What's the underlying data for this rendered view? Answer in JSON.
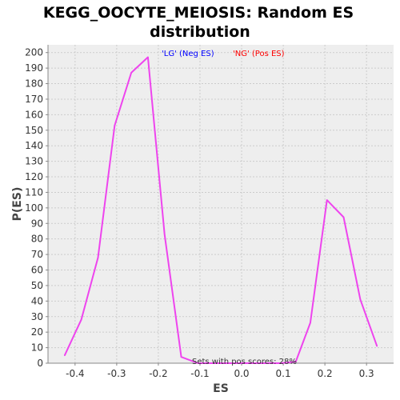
{
  "chart_data": {
    "type": "line",
    "title_line1": "KEGG_OOCYTE_MEIOSIS: Random ES",
    "title_line2": "distribution",
    "xlabel": "ES",
    "ylabel": "P(ES)",
    "xlim": [
      -0.465,
      0.365
    ],
    "ylim": [
      0,
      205
    ],
    "x_ticks": [
      "-0.4",
      "-0.3",
      "-0.2",
      "-0.1",
      "0.0",
      "0.1",
      "0.2",
      "0.3"
    ],
    "x_tick_values": [
      -0.4,
      -0.3,
      -0.2,
      -0.1,
      0.0,
      0.1,
      0.2,
      0.3
    ],
    "y_ticks": [
      "0",
      "10",
      "20",
      "30",
      "40",
      "50",
      "60",
      "70",
      "80",
      "90",
      "100",
      "110",
      "120",
      "130",
      "140",
      "150",
      "160",
      "170",
      "180",
      "190",
      "200"
    ],
    "y_tick_values": [
      0,
      10,
      20,
      30,
      40,
      50,
      60,
      70,
      80,
      90,
      100,
      110,
      120,
      130,
      140,
      150,
      160,
      170,
      180,
      190,
      200
    ],
    "grid": true,
    "legend": [
      {
        "label": "'LG' (Neg ES)",
        "color": "#0000ff"
      },
      {
        "label": "'NG' (Pos ES)",
        "color": "#ff0000"
      }
    ],
    "annotation": "Sets with pos scores: 28%",
    "series": [
      {
        "color": "#ee44ee",
        "points": [
          [
            -0.425,
            5
          ],
          [
            -0.385,
            28
          ],
          [
            -0.345,
            68
          ],
          [
            -0.305,
            153
          ],
          [
            -0.265,
            187
          ],
          [
            -0.225,
            197
          ],
          [
            -0.185,
            83
          ],
          [
            -0.145,
            4
          ],
          [
            -0.105,
            0
          ],
          [
            -0.065,
            0
          ],
          [
            -0.025,
            0
          ],
          [
            0.015,
            0
          ],
          [
            0.055,
            0
          ],
          [
            0.095,
            0
          ],
          [
            0.13,
            1
          ],
          [
            0.165,
            26
          ],
          [
            0.205,
            105
          ],
          [
            0.245,
            94
          ],
          [
            0.285,
            41
          ],
          [
            0.325,
            11
          ]
        ]
      }
    ]
  }
}
